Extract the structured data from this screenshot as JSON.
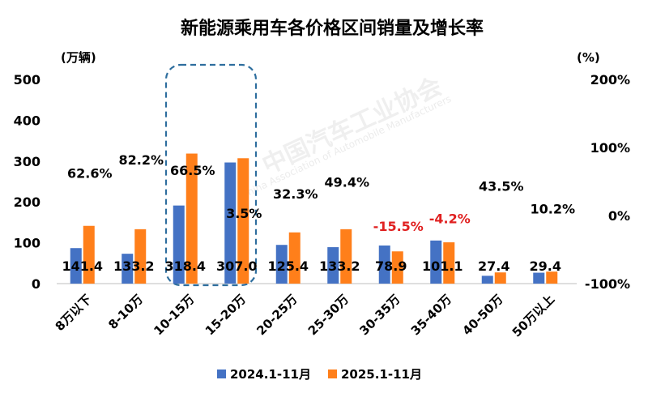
{
  "chart_data": {
    "type": "bar",
    "title": "新能源乘用车各价格区间销量及增长率",
    "ylabel": "(万辆)",
    "y2label": "(%)",
    "ylim": [
      0,
      500
    ],
    "y_ticks": [
      "0",
      "100",
      "200",
      "300",
      "400",
      "500"
    ],
    "y2lim": [
      -100,
      200
    ],
    "y2_ticks": [
      "-100%",
      "0%",
      "100%",
      "200%"
    ],
    "categories": [
      "8万以下",
      "8-10万",
      "10-15万",
      "15-20万",
      "20-25万",
      "25-30万",
      "30-35万",
      "35-40万",
      "40-50万",
      "50万以上"
    ],
    "series": [
      {
        "name": "2024.1-11月",
        "color": "#4472c4",
        "values": [
          86.9,
          73.1,
          191.2,
          296.6,
          94.8,
          89.2,
          93.3,
          105.5,
          19.1,
          26.7
        ]
      },
      {
        "name": "2025.1-11月",
        "color": "#ff7f1a",
        "values": [
          141.4,
          133.2,
          318.4,
          307.0,
          125.4,
          133.2,
          78.9,
          101.1,
          27.4,
          29.4
        ]
      }
    ],
    "value_labels": [
      "141.4",
      "133.2",
      "318.4",
      "307.0",
      "125.4",
      "133.2",
      "78.9",
      "101.1",
      "27.4",
      "29.4"
    ],
    "growth_labels": [
      "62.6%",
      "82.2%",
      "66.5%",
      "3.5%",
      "32.3%",
      "49.4%",
      "-15.5%",
      "-4.2%",
      "43.5%",
      "10.2%"
    ],
    "growth_colors": [
      "#000000",
      "#000000",
      "#000000",
      "#000000",
      "#000000",
      "#000000",
      "#e02020",
      "#e02020",
      "#000000",
      "#000000"
    ],
    "highlight_categories": [
      "10-15万",
      "15-20万"
    ],
    "highlight_color": "#2e6e9e",
    "legend": "bottom",
    "grid": false
  },
  "watermark": {
    "main": "中国汽车工业协会",
    "sub": "China Association of Automobile Manufacturers"
  }
}
